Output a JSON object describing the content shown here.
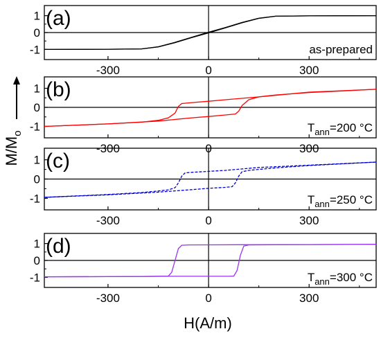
{
  "chart_data": {
    "type": "line",
    "xlabel": "H(A/m)",
    "ylabel": "M/M",
    "ylabel_sub": "o",
    "xlim": [
      -490,
      500
    ],
    "ylim": [
      -1.6,
      1.6
    ],
    "x_ticks": [
      -300,
      0,
      300
    ],
    "y_ticks": [
      -1,
      0,
      1
    ],
    "grid": false,
    "panels": [
      {
        "label": "(a)",
        "note_prefix": "as-prepared",
        "note_sub": "",
        "note_suffix": "",
        "color": "#000000",
        "dashed": false,
        "branches": [
          {
            "x": [
              -490,
              -300,
              -200,
              -150,
              -100,
              -50,
              0,
              50,
              100,
              150,
              200,
              300,
              500
            ],
            "y": [
              -1.0,
              -0.99,
              -0.97,
              -0.85,
              -0.6,
              -0.3,
              -0.02,
              0.28,
              0.58,
              0.84,
              0.97,
              0.99,
              1.0
            ]
          },
          {
            "x": [
              -490,
              -300,
              -200,
              -150,
              -100,
              -50,
              0,
              50,
              100,
              150,
              200,
              300,
              500
            ],
            "y": [
              -1.0,
              -0.99,
              -0.97,
              -0.84,
              -0.58,
              -0.28,
              0.02,
              0.3,
              0.6,
              0.85,
              0.97,
              0.99,
              1.0
            ]
          }
        ]
      },
      {
        "label": "(b)",
        "note_prefix": "T",
        "note_sub": "ann",
        "note_suffix": "=200 °C",
        "color": "#ff0000",
        "dashed": false,
        "branches": [
          {
            "x": [
              500,
              300,
              150,
              50,
              0,
              -50,
              -80,
              -90,
              -100,
              -120,
              -150,
              -200,
              -300,
              -490
            ],
            "y": [
              0.95,
              0.8,
              0.55,
              0.4,
              0.32,
              0.25,
              0.2,
              0.05,
              -0.3,
              -0.55,
              -0.68,
              -0.78,
              -0.87,
              -1.0
            ]
          },
          {
            "x": [
              -490,
              -300,
              -150,
              -50,
              0,
              50,
              80,
              90,
              100,
              120,
              150,
              200,
              300,
              500
            ],
            "y": [
              -1.0,
              -0.87,
              -0.72,
              -0.55,
              -0.48,
              -0.4,
              -0.35,
              -0.2,
              0.1,
              0.4,
              0.55,
              0.65,
              0.78,
              0.95
            ]
          }
        ]
      },
      {
        "label": "(c)",
        "note_prefix": "T",
        "note_sub": "ann",
        "note_suffix": "=250 °C",
        "color": "#0000cc",
        "dashed": true,
        "branches": [
          {
            "x": [
              500,
              300,
              150,
              50,
              0,
              -50,
              -70,
              -80,
              -90,
              -100,
              -120,
              -150,
              -200,
              -300,
              -490
            ],
            "y": [
              0.88,
              0.72,
              0.6,
              0.45,
              0.4,
              0.35,
              0.32,
              0.15,
              -0.2,
              -0.45,
              -0.56,
              -0.62,
              -0.7,
              -0.8,
              -0.95
            ]
          },
          {
            "x": [
              -490,
              -300,
              -150,
              -50,
              0,
              50,
              70,
              80,
              90,
              100,
              120,
              150,
              200,
              300,
              500
            ],
            "y": [
              -0.95,
              -0.82,
              -0.68,
              -0.55,
              -0.48,
              -0.43,
              -0.4,
              -0.2,
              0.15,
              0.38,
              0.45,
              0.5,
              0.58,
              0.7,
              0.88
            ]
          }
        ]
      },
      {
        "label": "(d)",
        "note_prefix": "T",
        "note_sub": "ann",
        "note_suffix": "=300 °C",
        "color": "#9933ee",
        "dashed": false,
        "branches": [
          {
            "x": [
              500,
              300,
              100,
              -60,
              -80,
              -90,
              -100,
              -110,
              -120,
              -200,
              -300,
              -490
            ],
            "y": [
              0.95,
              0.94,
              0.93,
              0.92,
              0.9,
              0.7,
              0.0,
              -0.7,
              -0.93,
              -0.95,
              -0.96,
              -0.97
            ]
          },
          {
            "x": [
              -490,
              -300,
              -100,
              60,
              75,
              85,
              95,
              105,
              120,
              200,
              300,
              500
            ],
            "y": [
              -0.97,
              -0.96,
              -0.94,
              -0.94,
              -0.93,
              -0.6,
              0.3,
              0.85,
              0.92,
              0.93,
              0.94,
              0.95
            ]
          }
        ]
      }
    ]
  }
}
